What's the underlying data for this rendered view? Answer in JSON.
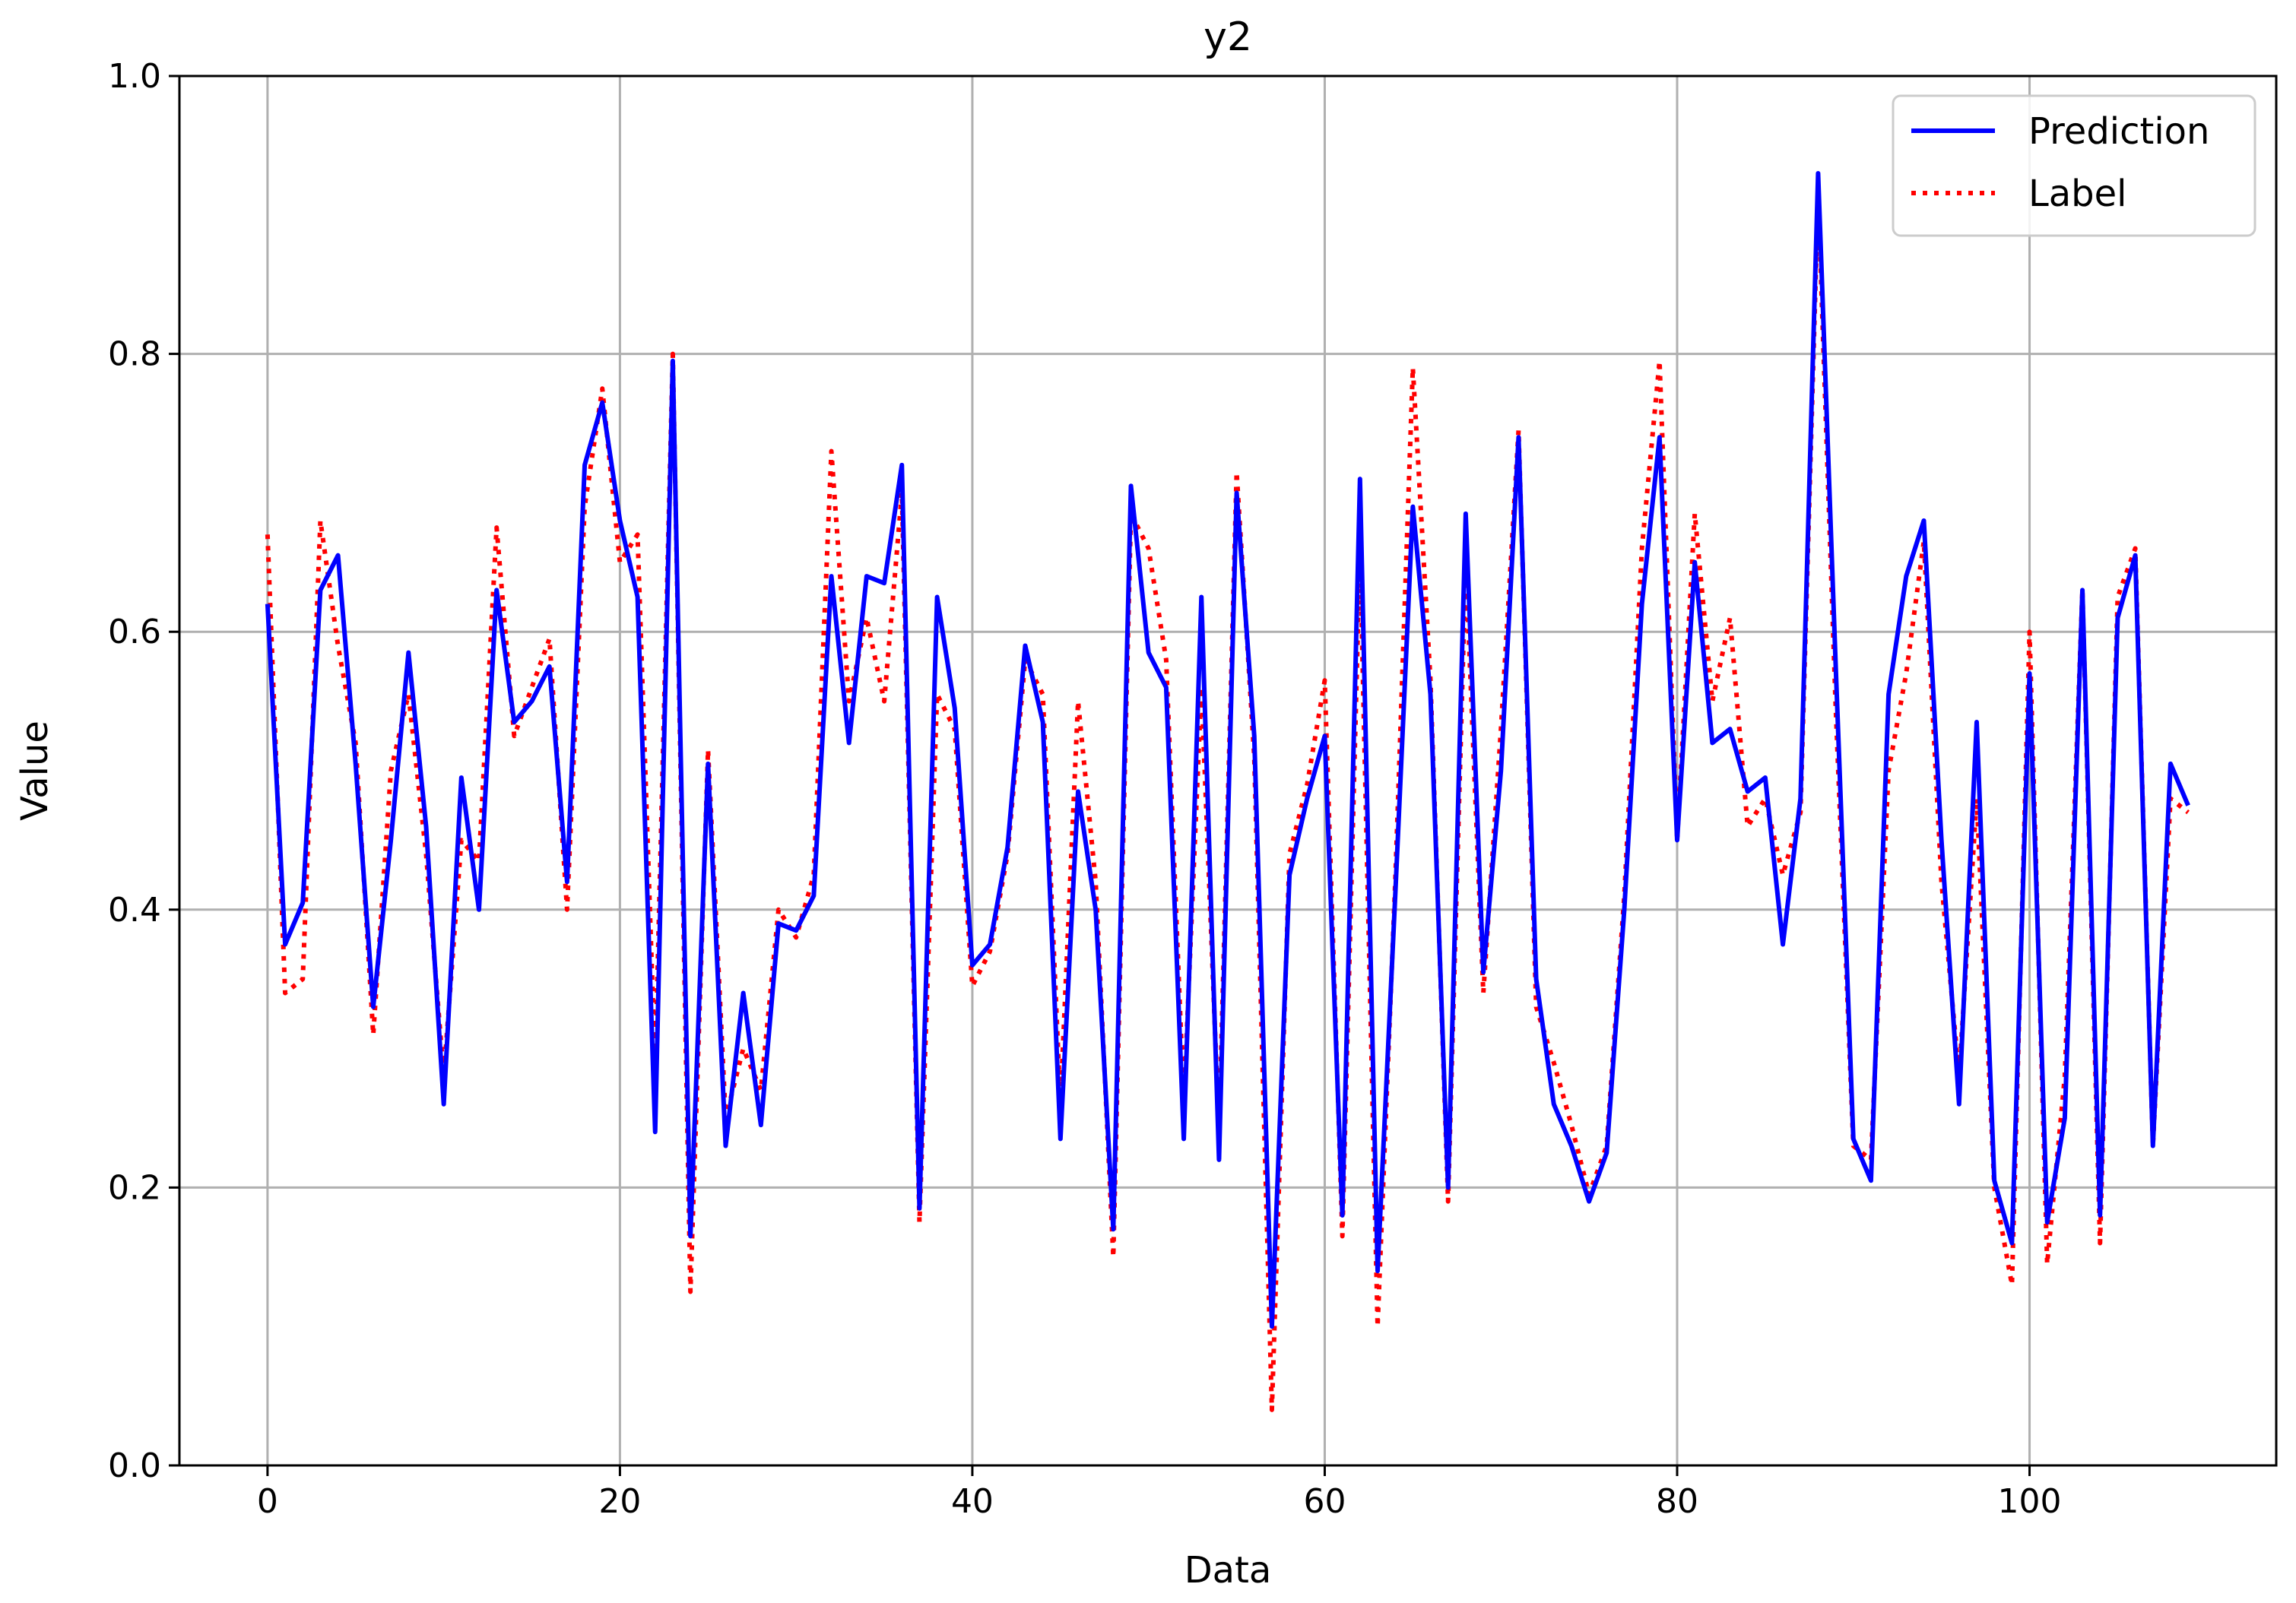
{
  "chart_data": {
    "type": "line",
    "title": "y2",
    "xlabel": "Data",
    "ylabel": "Value",
    "xlim": [
      -5,
      114
    ],
    "ylim": [
      0.0,
      1.0
    ],
    "xticks": [
      0,
      20,
      40,
      60,
      80,
      100
    ],
    "yticks": [
      0.0,
      0.2,
      0.4,
      0.6,
      0.8,
      1.0
    ],
    "xtick_labels": [
      "0",
      "20",
      "40",
      "60",
      "80",
      "100"
    ],
    "ytick_labels": [
      "0.0",
      "0.2",
      "0.4",
      "0.6",
      "0.8",
      "1.0"
    ],
    "grid": true,
    "legend_position": "top-right",
    "series": [
      {
        "name": "Prediction",
        "color": "#0000ff",
        "style": "solid",
        "values": [
          0.62,
          0.375,
          0.405,
          0.63,
          0.655,
          0.505,
          0.33,
          0.45,
          0.585,
          0.46,
          0.26,
          0.495,
          0.4,
          0.63,
          0.535,
          0.55,
          0.575,
          0.42,
          0.72,
          0.765,
          0.68,
          0.625,
          0.24,
          0.795,
          0.165,
          0.505,
          0.23,
          0.34,
          0.245,
          0.39,
          0.385,
          0.41,
          0.64,
          0.52,
          0.64,
          0.635,
          0.72,
          0.185,
          0.625,
          0.545,
          0.36,
          0.375,
          0.445,
          0.59,
          0.535,
          0.235,
          0.485,
          0.4,
          0.17,
          0.705,
          0.585,
          0.56,
          0.235,
          0.625,
          0.22,
          0.7,
          0.525,
          0.1,
          0.425,
          0.48,
          0.525,
          0.18,
          0.71,
          0.14,
          0.41,
          0.69,
          0.555,
          0.2,
          0.685,
          0.355,
          0.5,
          0.74,
          0.35,
          0.26,
          0.23,
          0.19,
          0.225,
          0.4,
          0.62,
          0.74,
          0.45,
          0.65,
          0.52,
          0.53,
          0.485,
          0.495,
          0.375,
          0.48,
          0.93,
          0.575,
          0.235,
          0.205,
          0.555,
          0.64,
          0.68,
          0.45,
          0.26,
          0.535,
          0.205,
          0.16,
          0.57,
          0.175,
          0.25,
          0.63,
          0.18,
          0.61,
          0.655,
          0.23,
          0.505,
          0.475
        ]
      },
      {
        "name": "Label",
        "color": "#ff0000",
        "style": "dotted",
        "values": [
          0.67,
          0.34,
          0.35,
          0.68,
          0.59,
          0.52,
          0.31,
          0.5,
          0.555,
          0.44,
          0.28,
          0.45,
          0.435,
          0.675,
          0.525,
          0.56,
          0.595,
          0.4,
          0.69,
          0.775,
          0.65,
          0.67,
          0.285,
          0.8,
          0.125,
          0.515,
          0.25,
          0.3,
          0.27,
          0.4,
          0.38,
          0.425,
          0.73,
          0.55,
          0.61,
          0.55,
          0.7,
          0.175,
          0.555,
          0.53,
          0.345,
          0.37,
          0.44,
          0.58,
          0.555,
          0.26,
          0.55,
          0.42,
          0.15,
          0.685,
          0.66,
          0.58,
          0.26,
          0.56,
          0.24,
          0.715,
          0.51,
          0.04,
          0.44,
          0.49,
          0.565,
          0.165,
          0.66,
          0.1,
          0.42,
          0.79,
          0.565,
          0.19,
          0.65,
          0.34,
          0.53,
          0.745,
          0.33,
          0.29,
          0.245,
          0.195,
          0.23,
          0.41,
          0.66,
          0.795,
          0.45,
          0.685,
          0.55,
          0.61,
          0.46,
          0.48,
          0.425,
          0.47,
          0.915,
          0.545,
          0.23,
          0.22,
          0.5,
          0.57,
          0.665,
          0.42,
          0.28,
          0.48,
          0.2,
          0.13,
          0.6,
          0.145,
          0.28,
          0.63,
          0.16,
          0.625,
          0.66,
          0.23,
          0.48,
          0.47
        ]
      }
    ]
  }
}
